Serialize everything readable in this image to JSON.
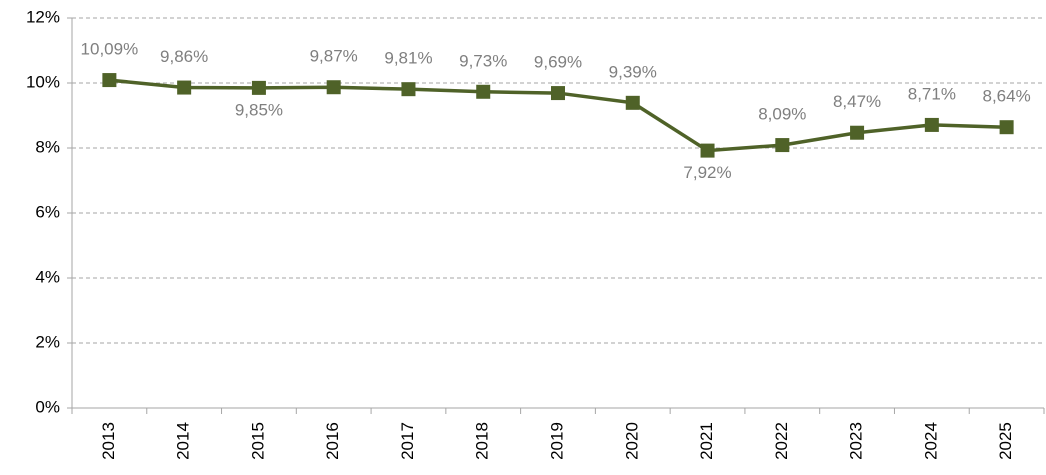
{
  "chart_data": {
    "type": "line",
    "categories": [
      "2013",
      "2014",
      "2015",
      "2016",
      "2017",
      "2018",
      "2019",
      "2020",
      "2021",
      "2022",
      "2023",
      "2024",
      "2025"
    ],
    "values": [
      10.09,
      9.86,
      9.85,
      9.87,
      9.81,
      9.73,
      9.69,
      9.39,
      7.92,
      8.09,
      8.47,
      8.71,
      8.64
    ],
    "value_labels": [
      "10,09%",
      "9,86%",
      "9,85%",
      "9,87%",
      "9,81%",
      "9,73%",
      "9,69%",
      "9,39%",
      "7,92%",
      "8,09%",
      "8,47%",
      "8,71%",
      "8,64%"
    ],
    "color": "#4f6228",
    "ylim": [
      0,
      12
    ],
    "yticks": [
      {
        "value": 0,
        "label": "0%"
      },
      {
        "value": 2,
        "label": "2%"
      },
      {
        "value": 4,
        "label": "4%"
      },
      {
        "value": 6,
        "label": "6%"
      },
      {
        "value": 8,
        "label": "8%"
      },
      {
        "value": 10,
        "label": "10%"
      },
      {
        "value": 12,
        "label": "12%"
      }
    ],
    "grid": true
  }
}
